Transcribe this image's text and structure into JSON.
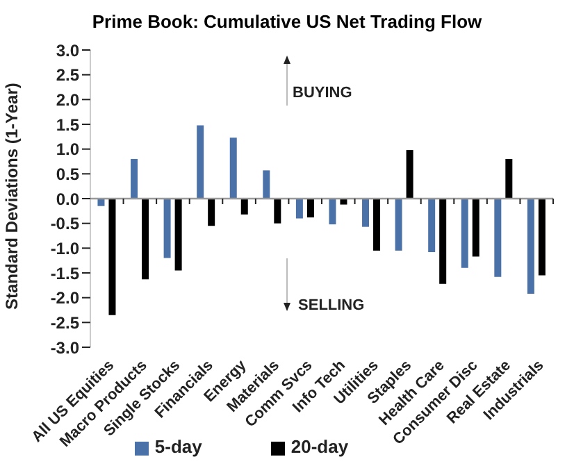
{
  "chart_data": {
    "type": "bar",
    "title": "Prime Book: Cumulative US Net Trading Flow",
    "ylabel": "Standard Deviations (1-Year)",
    "categories": [
      "All US Equities",
      "Macro Products",
      "Single Stocks",
      "Financials",
      "Energy",
      "Materials",
      "Comm Svcs",
      "Info Tech",
      "Utilities",
      "Staples",
      "Health Care",
      "Consumer Disc",
      "Real Estate",
      "Industrials"
    ],
    "series": [
      {
        "name": "5-day",
        "color": "#4a72a8",
        "values": [
          -0.15,
          0.8,
          -1.2,
          1.48,
          1.23,
          0.57,
          -0.4,
          -0.52,
          -0.57,
          -1.05,
          -1.08,
          -1.4,
          -1.58,
          -1.92
        ]
      },
      {
        "name": "20-day",
        "color": "#000000",
        "values": [
          -2.35,
          -1.63,
          -1.45,
          -0.55,
          -0.32,
          -0.5,
          -0.38,
          -0.12,
          -1.05,
          0.98,
          -1.72,
          -1.17,
          0.8,
          -1.55
        ]
      }
    ],
    "ylim": [
      -3,
      3
    ],
    "yticks": [
      {
        "value": -3,
        "label": "-3.0"
      },
      {
        "value": -2.5,
        "label": "-2.5"
      },
      {
        "value": -2,
        "label": "-2.0"
      },
      {
        "value": -1.5,
        "label": "-1.5"
      },
      {
        "value": -1,
        "label": "-1.0"
      },
      {
        "value": -0.5,
        "label": "-0.5"
      },
      {
        "value": 0,
        "label": "0.0"
      },
      {
        "value": 0.5,
        "label": "0.5"
      },
      {
        "value": 1,
        "label": "1.0"
      },
      {
        "value": 1.5,
        "label": "1.5"
      },
      {
        "value": 2,
        "label": "2.0"
      },
      {
        "value": 2.5,
        "label": "2.5"
      },
      {
        "value": 3,
        "label": "3.0"
      }
    ],
    "annotations": [
      "BUYING",
      "SELLING"
    ],
    "legend": "bottom"
  }
}
